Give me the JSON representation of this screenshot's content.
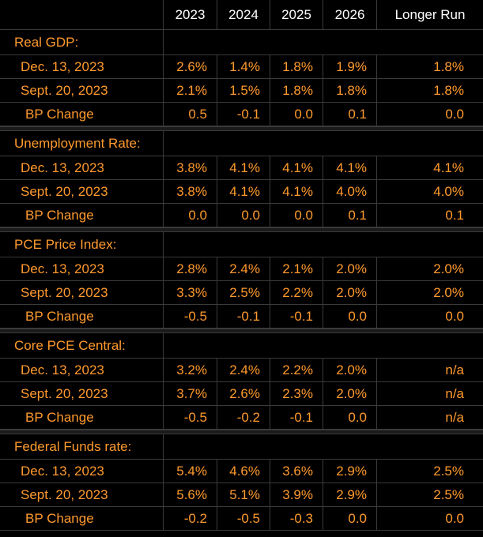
{
  "columns": [
    "2023",
    "2024",
    "2025",
    "2026",
    "Longer Run"
  ],
  "sections": [
    {
      "title": "Real GDP:",
      "rows": [
        {
          "label": "Dec. 13, 2023",
          "values": [
            "2.6%",
            "1.4%",
            "1.8%",
            "1.9%",
            "1.8%"
          ]
        },
        {
          "label": "Sept. 20, 2023",
          "values": [
            "2.1%",
            "1.5%",
            "1.8%",
            "1.8%",
            "1.8%"
          ]
        },
        {
          "label": "BP Change",
          "values": [
            "0.5",
            "-0.1",
            "0.0",
            "0.1",
            "0.0"
          ]
        }
      ]
    },
    {
      "title": "Unemployment Rate:",
      "rows": [
        {
          "label": "Dec. 13, 2023",
          "values": [
            "3.8%",
            "4.1%",
            "4.1%",
            "4.1%",
            "4.1%"
          ]
        },
        {
          "label": "Sept. 20, 2023",
          "values": [
            "3.8%",
            "4.1%",
            "4.1%",
            "4.0%",
            "4.0%"
          ]
        },
        {
          "label": "BP Change",
          "values": [
            "0.0",
            "0.0",
            "0.0",
            "0.1",
            "0.1"
          ]
        }
      ]
    },
    {
      "title": "PCE Price Index:",
      "rows": [
        {
          "label": "Dec. 13, 2023",
          "values": [
            "2.8%",
            "2.4%",
            "2.1%",
            "2.0%",
            "2.0%"
          ]
        },
        {
          "label": "Sept. 20, 2023",
          "values": [
            "3.3%",
            "2.5%",
            "2.2%",
            "2.0%",
            "2.0%"
          ]
        },
        {
          "label": "BP Change",
          "values": [
            "-0.5",
            "-0.1",
            "-0.1",
            "0.0",
            "0.0"
          ]
        }
      ]
    },
    {
      "title": "Core PCE Central:",
      "rows": [
        {
          "label": "Dec. 13, 2023",
          "values": [
            "3.2%",
            "2.4%",
            "2.2%",
            "2.0%",
            "n/a"
          ]
        },
        {
          "label": "Sept. 20, 2023",
          "values": [
            "3.7%",
            "2.6%",
            "2.3%",
            "2.0%",
            "n/a"
          ]
        },
        {
          "label": "BP Change",
          "values": [
            "-0.5",
            "-0.2",
            "-0.1",
            "0.0",
            "n/a"
          ]
        }
      ]
    },
    {
      "title": "Federal Funds rate:",
      "rows": [
        {
          "label": "Dec. 13, 2023",
          "values": [
            "5.4%",
            "4.6%",
            "3.6%",
            "2.9%",
            "2.5%"
          ]
        },
        {
          "label": "Sept. 20, 2023",
          "values": [
            "5.6%",
            "5.1%",
            "3.9%",
            "2.9%",
            "2.5%"
          ]
        },
        {
          "label": "BP Change",
          "values": [
            "-0.2",
            "-0.5",
            "-0.3",
            "0.0",
            "0.0"
          ]
        }
      ]
    }
  ],
  "colors": {
    "background": "#000000",
    "value_text": "#ff9a2e",
    "header_text": "#ffffff",
    "grid_line": "#3b3b3b"
  }
}
